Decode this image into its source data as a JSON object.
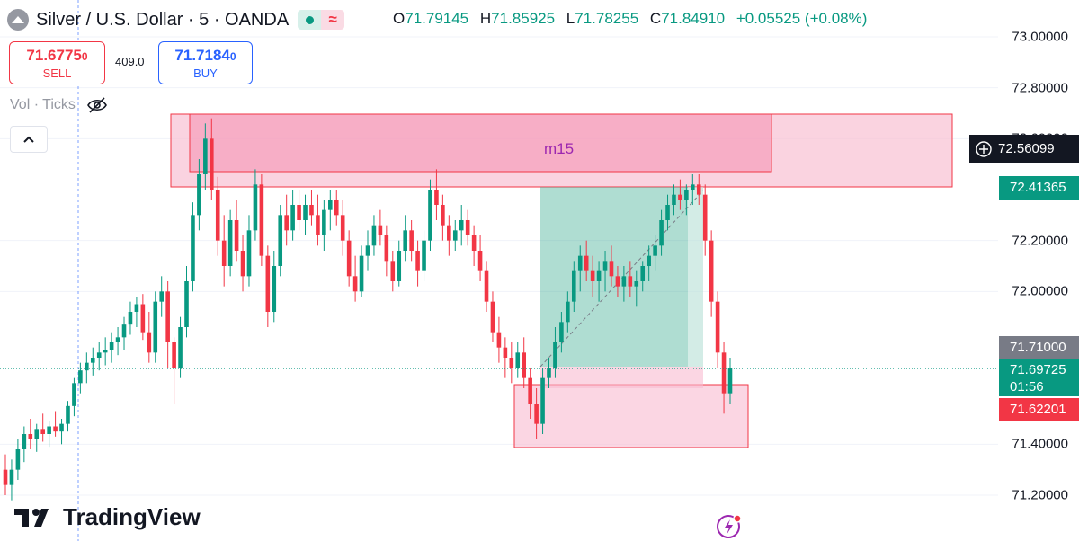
{
  "header": {
    "title": "Silver / U.S. Dollar · 5 · OANDA",
    "ohlc": {
      "o_label": "O",
      "o": "71.79145",
      "h_label": "H",
      "h": "71.85925",
      "l_label": "L",
      "l": "71.78255",
      "c_label": "C",
      "c": "71.84910",
      "change": "+0.05525 (+0.08%)"
    }
  },
  "trade": {
    "sell_price": "71.6775",
    "sell_price_small": "0",
    "sell_label": "SELL",
    "spread": "409.0",
    "buy_price": "71.7184",
    "buy_price_small": "0",
    "buy_label": "BUY"
  },
  "indicator": {
    "label": "Vol · Ticks"
  },
  "branding": {
    "name": "TradingView"
  },
  "colors": {
    "up": "#089981",
    "down": "#f23645",
    "zone": "#f7a6c2",
    "target": "#2ea68a"
  },
  "icons": [
    "symbol-icon",
    "live-dot-icon",
    "wave-icon",
    "eye-off-icon",
    "chevron-up-icon",
    "crosshair-plus-icon",
    "bolt-icon",
    "tradingview-logo-icon"
  ],
  "axis": {
    "ticks": [
      "73.00000",
      "72.80000",
      "72.60000",
      "72.20000",
      "72.00000",
      "71.40000",
      "71.20000"
    ],
    "cross_price": "72.56099",
    "tag_target": "72.41365",
    "tag_gray": "71.71000",
    "tag_current": "71.69725",
    "tag_countdown": "01:56",
    "tag_low": "71.62201"
  },
  "zone_label": "m15",
  "chart_data": {
    "type": "candlestick",
    "instrument": "Silver / U.S. Dollar",
    "timeframe": "5",
    "ylim": [
      71.1,
      73.05
    ],
    "candles": [
      [
        71.3,
        71.36,
        71.2,
        71.24
      ],
      [
        71.24,
        71.34,
        71.18,
        71.3
      ],
      [
        71.3,
        71.42,
        71.26,
        71.38
      ],
      [
        71.38,
        71.47,
        71.33,
        71.44
      ],
      [
        71.44,
        71.5,
        71.38,
        71.42
      ],
      [
        71.42,
        71.48,
        71.37,
        71.46
      ],
      [
        71.46,
        71.52,
        71.41,
        71.44
      ],
      [
        71.44,
        71.49,
        71.39,
        71.47
      ],
      [
        71.47,
        71.53,
        71.43,
        71.45
      ],
      [
        71.45,
        71.5,
        71.4,
        71.48
      ],
      [
        71.48,
        71.57,
        71.45,
        71.55
      ],
      [
        71.55,
        71.66,
        71.51,
        71.64
      ],
      [
        71.64,
        71.72,
        71.6,
        71.69
      ],
      [
        71.69,
        71.76,
        71.64,
        71.72
      ],
      [
        71.72,
        71.78,
        71.67,
        71.74
      ],
      [
        71.74,
        71.8,
        71.69,
        71.76
      ],
      [
        71.76,
        71.82,
        71.71,
        71.77
      ],
      [
        71.77,
        71.84,
        71.72,
        71.8
      ],
      [
        71.8,
        71.86,
        71.75,
        71.82
      ],
      [
        71.82,
        71.9,
        71.77,
        71.87
      ],
      [
        71.87,
        71.96,
        71.83,
        71.92
      ],
      [
        71.92,
        71.98,
        71.86,
        71.95
      ],
      [
        71.95,
        71.99,
        71.81,
        71.84
      ],
      [
        71.84,
        71.92,
        71.72,
        71.76
      ],
      [
        71.76,
        72.0,
        71.72,
        71.96
      ],
      [
        71.96,
        72.06,
        71.9,
        72.0
      ],
      [
        72.0,
        72.04,
        71.7,
        71.8
      ],
      [
        71.8,
        71.82,
        71.56,
        71.7
      ],
      [
        71.7,
        71.9,
        71.66,
        71.86
      ],
      [
        71.86,
        72.1,
        71.82,
        72.04
      ],
      [
        72.04,
        72.35,
        72.0,
        72.3
      ],
      [
        72.3,
        72.52,
        72.24,
        72.46
      ],
      [
        72.46,
        72.66,
        72.4,
        72.6
      ],
      [
        72.6,
        72.68,
        72.36,
        72.4
      ],
      [
        72.4,
        72.45,
        72.14,
        72.2
      ],
      [
        72.2,
        72.3,
        72.02,
        72.1
      ],
      [
        72.1,
        72.32,
        72.06,
        72.28
      ],
      [
        72.28,
        72.36,
        72.12,
        72.16
      ],
      [
        72.16,
        72.22,
        72.0,
        72.06
      ],
      [
        72.06,
        72.3,
        72.02,
        72.24
      ],
      [
        72.24,
        72.48,
        72.2,
        72.42
      ],
      [
        72.42,
        72.46,
        72.1,
        72.14
      ],
      [
        72.14,
        72.18,
        71.86,
        71.92
      ],
      [
        71.92,
        72.16,
        71.88,
        72.1
      ],
      [
        72.1,
        72.34,
        72.06,
        72.3
      ],
      [
        72.3,
        72.38,
        72.18,
        72.24
      ],
      [
        72.24,
        72.4,
        72.2,
        72.34
      ],
      [
        72.34,
        72.4,
        72.24,
        72.28
      ],
      [
        72.28,
        72.38,
        72.22,
        72.34
      ],
      [
        72.34,
        72.4,
        72.26,
        72.3
      ],
      [
        72.3,
        72.38,
        72.18,
        72.22
      ],
      [
        72.22,
        72.36,
        72.16,
        72.32
      ],
      [
        72.32,
        72.4,
        72.24,
        72.36
      ],
      [
        72.36,
        72.4,
        72.26,
        72.3
      ],
      [
        72.3,
        72.36,
        72.14,
        72.2
      ],
      [
        72.2,
        72.24,
        72.02,
        72.06
      ],
      [
        72.06,
        72.14,
        71.96,
        72.0
      ],
      [
        72.0,
        72.18,
        71.98,
        72.14
      ],
      [
        72.14,
        72.24,
        72.08,
        72.18
      ],
      [
        72.18,
        72.3,
        72.14,
        72.26
      ],
      [
        72.26,
        72.32,
        72.18,
        72.22
      ],
      [
        72.22,
        72.26,
        72.06,
        72.12
      ],
      [
        72.12,
        72.16,
        72.0,
        72.04
      ],
      [
        72.04,
        72.2,
        72.02,
        72.16
      ],
      [
        72.16,
        72.3,
        72.12,
        72.24
      ],
      [
        72.24,
        72.28,
        72.12,
        72.16
      ],
      [
        72.16,
        72.2,
        72.02,
        72.08
      ],
      [
        72.08,
        72.24,
        72.04,
        72.2
      ],
      [
        72.2,
        72.44,
        72.16,
        72.4
      ],
      [
        72.4,
        72.48,
        72.28,
        72.34
      ],
      [
        72.34,
        72.38,
        72.2,
        72.26
      ],
      [
        72.26,
        72.3,
        72.14,
        72.2
      ],
      [
        72.2,
        72.28,
        72.16,
        72.24
      ],
      [
        72.24,
        72.34,
        72.18,
        72.28
      ],
      [
        72.28,
        72.32,
        72.18,
        72.22
      ],
      [
        72.22,
        72.26,
        72.1,
        72.16
      ],
      [
        72.16,
        72.22,
        72.04,
        72.08
      ],
      [
        72.08,
        72.12,
        71.92,
        71.96
      ],
      [
        71.96,
        72.0,
        71.8,
        71.84
      ],
      [
        71.84,
        71.9,
        71.72,
        71.78
      ],
      [
        71.78,
        71.82,
        71.66,
        71.74
      ],
      [
        71.74,
        71.8,
        71.64,
        71.7
      ],
      [
        71.7,
        71.8,
        71.66,
        71.76
      ],
      [
        71.76,
        71.82,
        71.62,
        71.66
      ],
      [
        71.66,
        71.7,
        71.5,
        71.56
      ],
      [
        71.56,
        71.62,
        71.42,
        71.48
      ],
      [
        71.48,
        71.7,
        71.44,
        71.66
      ],
      [
        71.66,
        71.74,
        71.62,
        71.7
      ],
      [
        71.7,
        71.86,
        71.66,
        71.8
      ],
      [
        71.8,
        71.92,
        71.76,
        71.88
      ],
      [
        71.88,
        72.0,
        71.84,
        71.96
      ],
      [
        71.96,
        72.12,
        71.92,
        72.08
      ],
      [
        72.08,
        72.18,
        72.0,
        72.14
      ],
      [
        72.14,
        72.2,
        72.04,
        72.08
      ],
      [
        72.08,
        72.14,
        71.98,
        72.04
      ],
      [
        72.04,
        72.12,
        71.96,
        72.08
      ],
      [
        72.08,
        72.16,
        72.0,
        72.12
      ],
      [
        72.12,
        72.18,
        72.02,
        72.06
      ],
      [
        72.06,
        72.1,
        71.98,
        72.02
      ],
      [
        72.02,
        72.1,
        71.96,
        72.06
      ],
      [
        72.06,
        72.12,
        71.98,
        72.02
      ],
      [
        72.02,
        72.08,
        71.94,
        72.04
      ],
      [
        72.04,
        72.12,
        72.0,
        72.1
      ],
      [
        72.1,
        72.18,
        72.04,
        72.14
      ],
      [
        72.14,
        72.22,
        72.08,
        72.18
      ],
      [
        72.18,
        72.32,
        72.14,
        72.28
      ],
      [
        72.28,
        72.38,
        72.24,
        72.34
      ],
      [
        72.34,
        72.42,
        72.3,
        72.38
      ],
      [
        72.38,
        72.44,
        72.32,
        72.36
      ],
      [
        72.36,
        72.42,
        72.3,
        72.4
      ],
      [
        72.4,
        72.46,
        72.34,
        72.42
      ],
      [
        72.42,
        72.46,
        72.34,
        72.38
      ],
      [
        72.38,
        72.42,
        72.14,
        72.2
      ],
      [
        72.2,
        72.24,
        71.9,
        71.96
      ],
      [
        71.96,
        72.0,
        71.7,
        71.76
      ],
      [
        71.76,
        71.8,
        71.52,
        71.6
      ],
      [
        71.6,
        71.74,
        71.56,
        71.7
      ]
    ]
  }
}
